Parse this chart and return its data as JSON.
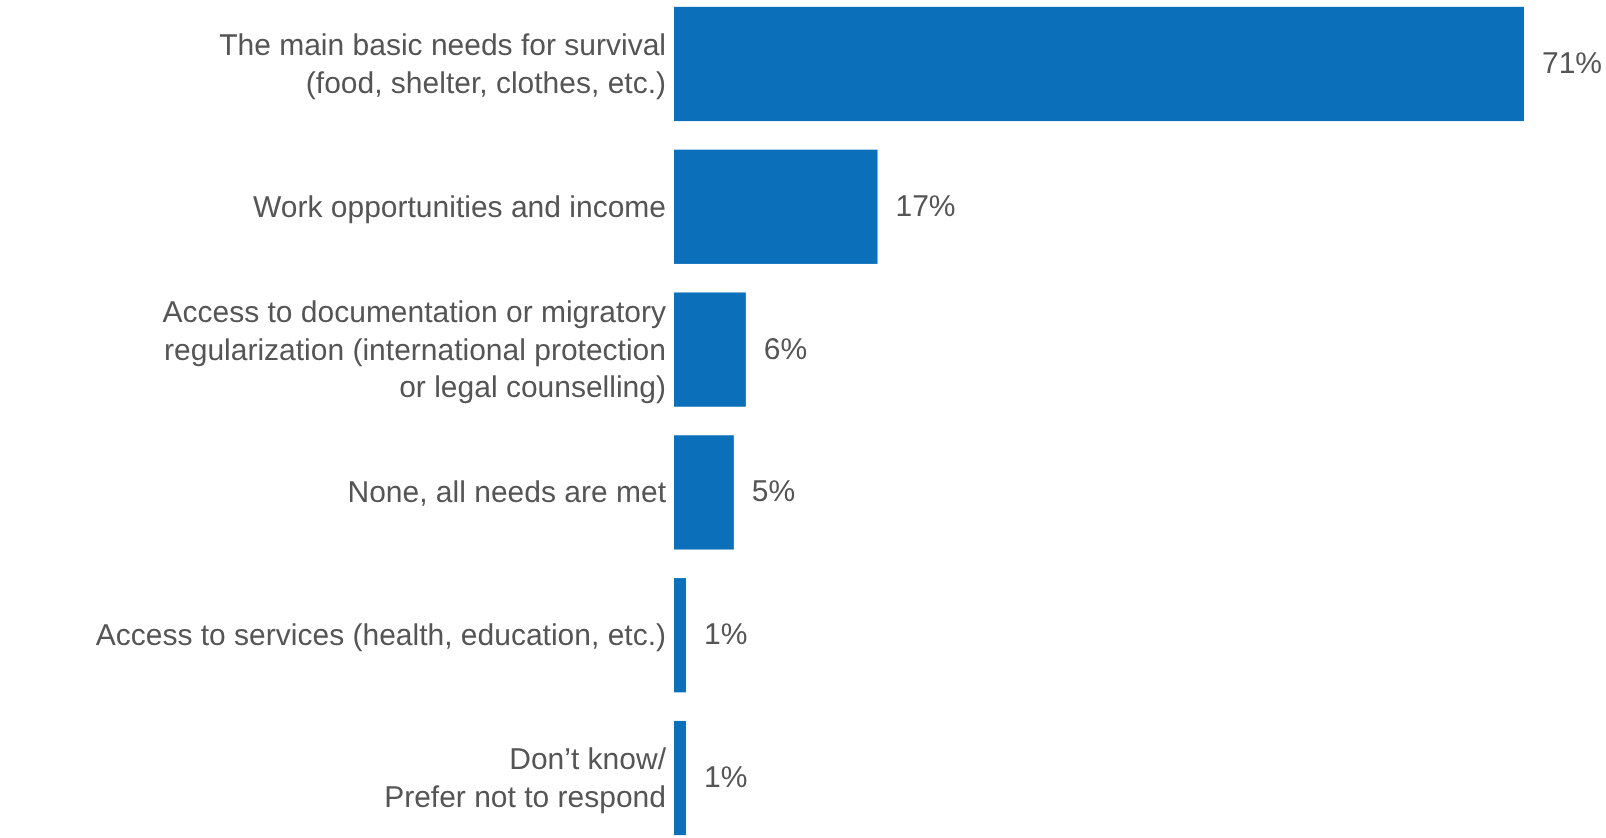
{
  "chart_data": {
    "type": "bar",
    "orientation": "horizontal",
    "categories": [
      "The main basic needs for survival\n(food, shelter, clothes, etc.)",
      "Work opportunities and income",
      "Access to documentation or migratory\nregularization (international protection\nor legal counselling)",
      "None, all needs are met",
      "Access to services (health, education, etc.)",
      "Don’t know/\nPrefer not to respond"
    ],
    "values": [
      71,
      17,
      6,
      5,
      1,
      1
    ],
    "value_labels": [
      "71%",
      "17%",
      "6%",
      "5%",
      "1%",
      "1%"
    ],
    "color": "#0b6fba"
  }
}
